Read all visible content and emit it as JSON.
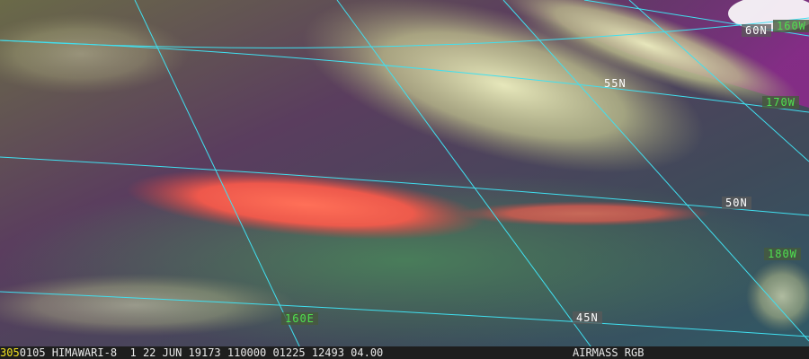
{
  "image": {
    "description_type": "satellite airmass RGB with lat/lon grid",
    "grid_color": "#40e0f0"
  },
  "labels": {
    "latitude": [
      "60N",
      "55N",
      "50N",
      "45N"
    ],
    "longitude": [
      "160W",
      "170W",
      "180W",
      "160E"
    ]
  },
  "status": {
    "frame": "305",
    "info": "0105 HIMAWARI-8  1 22 JUN 19173 110000 01225 12493 04.00",
    "product": "AIRMASS RGB"
  },
  "colors": {
    "status_frame": "#f0e020",
    "lat_label_text": "#ffffff",
    "lon_label_text": "#4fe04f"
  }
}
